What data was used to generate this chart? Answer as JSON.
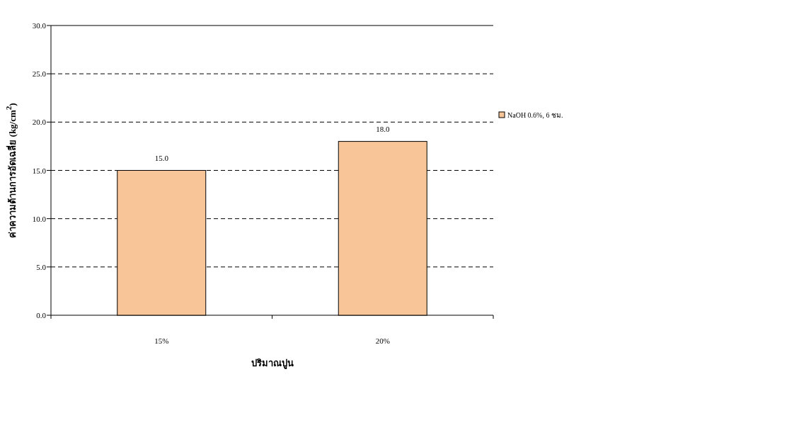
{
  "chart_data": {
    "type": "bar",
    "categories": [
      "15%",
      "20%"
    ],
    "series": [
      {
        "name": "NaOH 0.6%, 6 ชม.",
        "color": "#f7c597",
        "values": [
          15.0,
          18.0
        ],
        "value_labels": [
          "15.0",
          "18.0"
        ]
      }
    ],
    "xlabel": "ปริมาณปูน",
    "ylabel": "ค่าความต้านการอัดเฉลี่ย (kg/cm$^{2}$)",
    "ylim": [
      0,
      30
    ],
    "yticks": [
      {
        "value": 0,
        "label": "0.0"
      },
      {
        "value": 5,
        "label": "5.0"
      },
      {
        "value": 10,
        "label": "10.0"
      },
      {
        "value": 15,
        "label": "15.0"
      },
      {
        "value": 20,
        "label": "20.0"
      },
      {
        "value": 25,
        "label": "25.0"
      },
      {
        "value": 30,
        "label": "30.0"
      }
    ],
    "grid": "y",
    "legend": "right"
  }
}
